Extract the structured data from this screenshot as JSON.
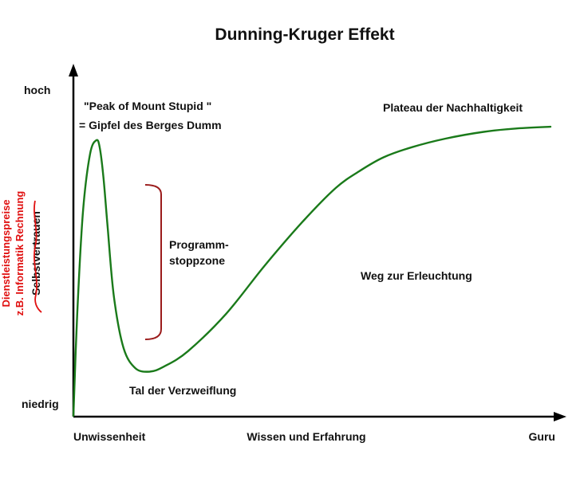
{
  "chart_data": {
    "type": "line",
    "title": "Dunning-Kruger Effekt",
    "xlabel": "Wissen und Erfahrung",
    "x_start_label": "Unwissenheit",
    "x_end_label": "Guru",
    "ylabel_struck": "Selbstvertrauen",
    "ylabel_replacement": [
      "Dienstleistungspreise",
      "z.B. Informatik Rechnung"
    ],
    "y_top_label": "hoch",
    "y_bottom_label": "niedrig",
    "xlim": [
      0,
      100
    ],
    "ylim": [
      0,
      100
    ],
    "series": [
      {
        "x": [
          0,
          0.8,
          2,
          3.5,
          4.8,
          5.5,
          6.3,
          7.2,
          8.5,
          10.5,
          13,
          16,
          19,
          24,
          32,
          40,
          48,
          55,
          60,
          65,
          71,
          78,
          86,
          93,
          100
        ],
        "y": [
          0,
          30,
          60,
          77,
          81,
          79,
          70,
          55,
          35,
          20,
          14,
          13,
          14.5,
          19,
          30,
          44,
          57,
          67,
          72,
          76,
          79,
          81.5,
          83.5,
          84.5,
          85
        ],
        "color": "#1a7a1a"
      }
    ],
    "annotations": {
      "peak_line1": "\"Peak of Mount Stupid \"",
      "peak_line2": "= Gipfel des Berges Dumm",
      "plateau": "Plateau der Nachhaltigkeit",
      "stop_zone_line1": "Programm-",
      "stop_zone_line2": "stoppzone",
      "slope": "Weg zur Erleuchtung",
      "valley": "Tal der Verzweiflung"
    },
    "grid": false,
    "legend": "none"
  }
}
